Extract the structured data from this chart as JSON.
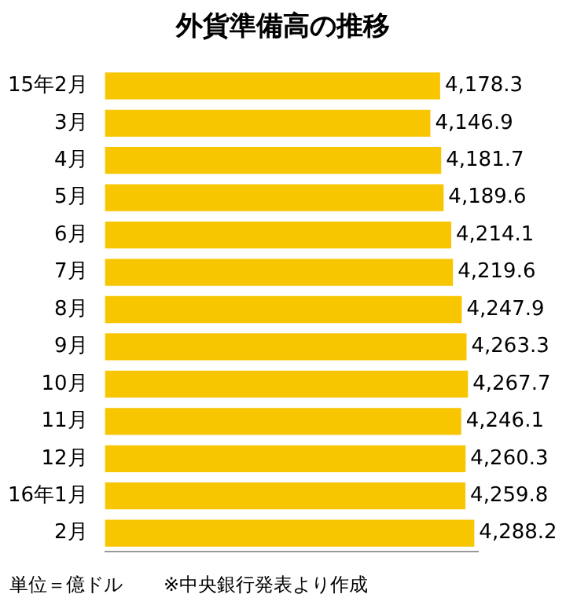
{
  "chart_data": {
    "type": "bar",
    "orientation": "horizontal",
    "title": "外貨準備高の推移",
    "categories": [
      "15年2月",
      "3月",
      "4月",
      "5月",
      "6月",
      "7月",
      "8月",
      "9月",
      "10月",
      "11月",
      "12月",
      "16年1月",
      "2月"
    ],
    "values": [
      4178.3,
      4146.9,
      4181.7,
      4189.6,
      4214.1,
      4219.6,
      4247.9,
      4263.3,
      4267.7,
      4246.1,
      4260.3,
      4259.8,
      4288.2
    ],
    "color": "#f7c600",
    "xlim": [
      3100,
      4300
    ],
    "tick_labels": "y",
    "value_labels": [
      "4,178.3",
      "4,146.9",
      "4,181.7",
      "4,189.6",
      "4,214.1",
      "4,219.6",
      "4,247.9",
      "4,263.3",
      "4,267.7",
      "4,246.1",
      "4,260.3",
      "4,259.8",
      "4,288.2"
    ],
    "annotations": [
      "単位＝億ドル",
      "※中央銀行発表より作成"
    ]
  }
}
